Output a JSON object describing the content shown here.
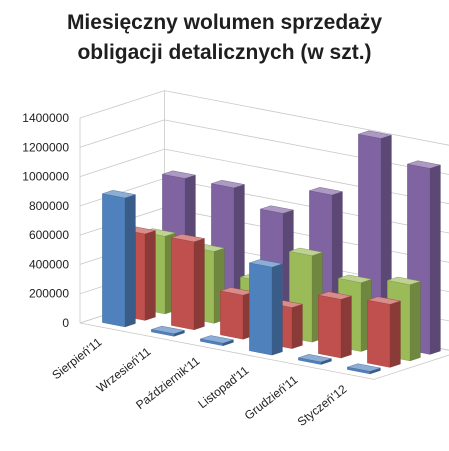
{
  "chart_data": {
    "type": "bar",
    "style": "3d-clustered-column",
    "title_lines": [
      "Miesięczny wolumen sprzedaży",
      "obligacji detalicznych (w szt.)"
    ],
    "categories": [
      "Sierpień'11",
      "Wrzesień'11",
      "Październik'11",
      "Listopad'11",
      "Grudzień'11",
      "Styczeń'12"
    ],
    "series": [
      {
        "color": "#4f81bd",
        "values": [
          880000,
          0,
          0,
          600000,
          0,
          0
        ]
      },
      {
        "color": "#c0504d",
        "values": [
          590000,
          600000,
          300000,
          280000,
          400000,
          430000
        ]
      },
      {
        "color": "#9bbb59",
        "values": [
          530000,
          490000,
          350000,
          590000,
          470000,
          520000
        ]
      },
      {
        "color": "#8064a2",
        "values": [
          880000,
          880000,
          770000,
          960000,
          1410000,
          1270000
        ]
      }
    ],
    "y_ticks": [
      0,
      200000,
      400000,
      600000,
      800000,
      1000000,
      1200000,
      1400000
    ],
    "ylim": [
      0,
      1400000
    ],
    "grid": true,
    "legend": "none"
  }
}
